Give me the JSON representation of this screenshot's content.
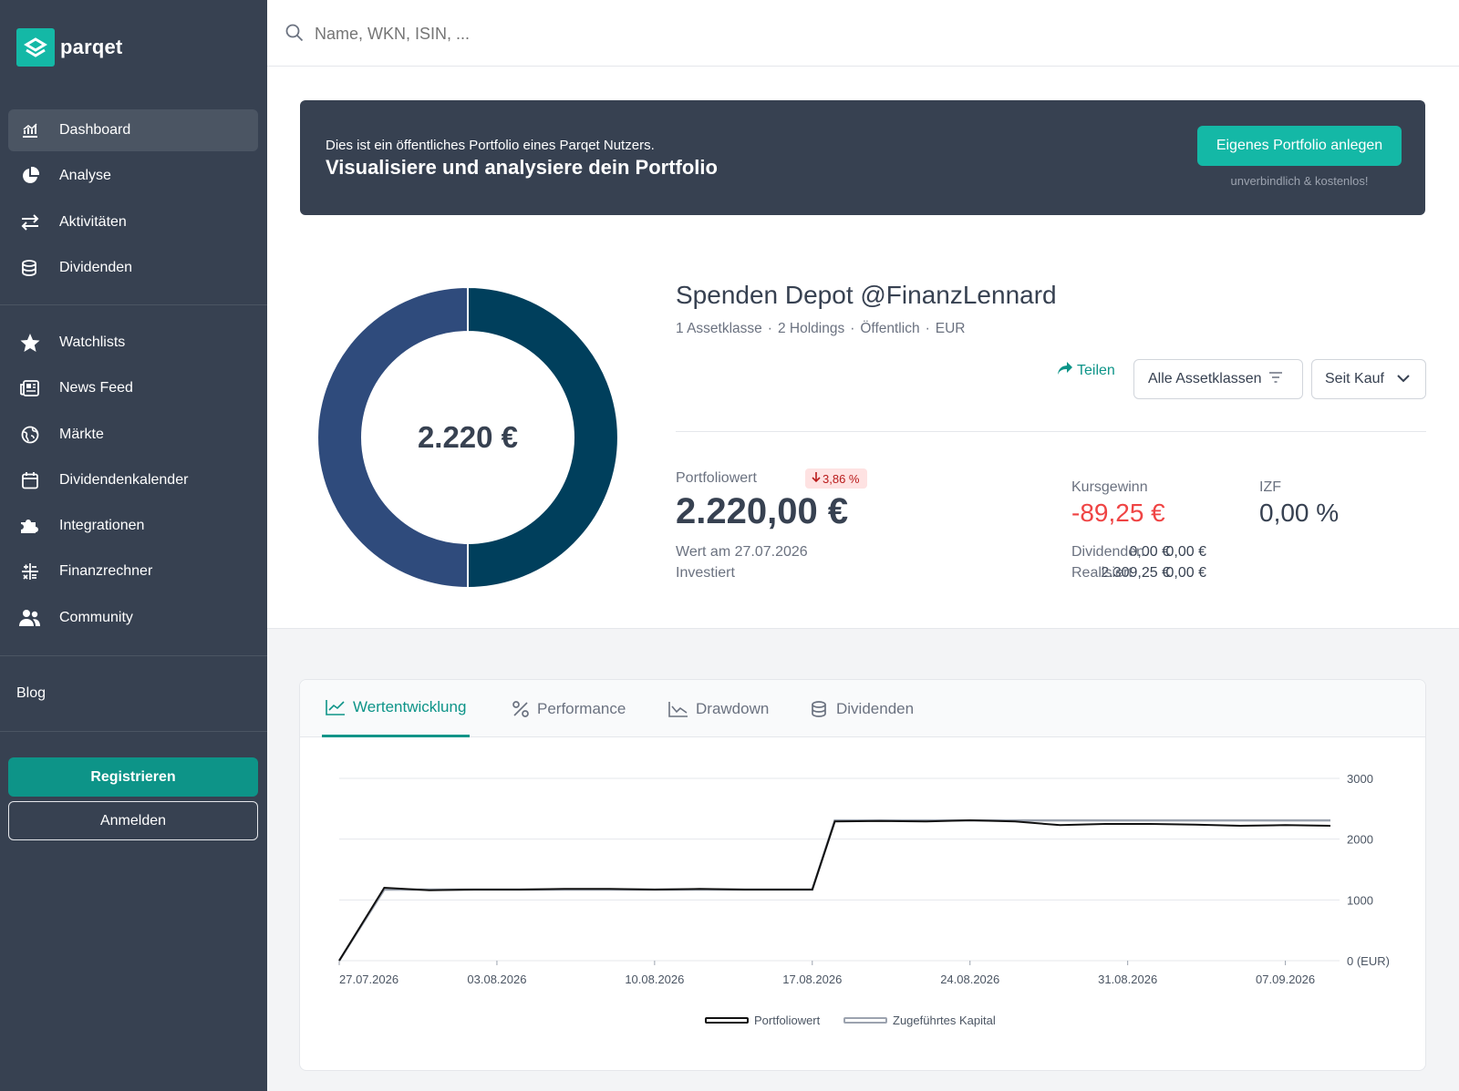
{
  "brand": {
    "name": "parqet",
    "color": "#14b8a6"
  },
  "sidebar": {
    "items_main": [
      {
        "label": "Dashboard",
        "icon": "chart-bars-icon",
        "active": true
      },
      {
        "label": "Analyse",
        "icon": "pie-chart-icon"
      },
      {
        "label": "Aktivitäten",
        "icon": "arrows-exchange-icon"
      },
      {
        "label": "Dividenden",
        "icon": "coins-icon"
      }
    ],
    "items_secondary": [
      {
        "label": "Watchlists",
        "icon": "star-icon"
      },
      {
        "label": "News Feed",
        "icon": "newspaper-icon"
      },
      {
        "label": "Märkte",
        "icon": "globe-icon"
      },
      {
        "label": "Dividendenkalender",
        "icon": "calendar-icon"
      },
      {
        "label": "Integrationen",
        "icon": "puzzle-icon"
      },
      {
        "label": "Finanzrechner",
        "icon": "calculator-icon"
      },
      {
        "label": "Community",
        "icon": "users-icon"
      }
    ],
    "blog": "Blog",
    "register": "Registrieren",
    "login": "Anmelden"
  },
  "search": {
    "placeholder": "Name, WKN, ISIN, ..."
  },
  "banner": {
    "subtitle": "Dies ist ein öffentliches Portfolio eines Parqet Nutzers.",
    "title": "Visualisiere und analysiere dein Portfolio",
    "button": "Eigenes Portfolio anlegen",
    "note": "unverbindlich & kostenlos!"
  },
  "donut": {
    "center_label": "2.220 €",
    "slices": [
      {
        "value": 50,
        "color": "#003f5c"
      },
      {
        "value": 50,
        "color": "#2f4b7c"
      }
    ]
  },
  "portfolio": {
    "title": "Spenden Depot @FinanzLennard",
    "meta": [
      "1 Assetklasse",
      "2 Holdings",
      "Öffentlich",
      "EUR"
    ],
    "share": "Teilen",
    "filter": "Alle Assetklassen",
    "period": "Seit Kauf",
    "value_label": "Portfoliowert",
    "change_badge": "3,86 %",
    "value": "2.220,00 €",
    "rows_left": [
      {
        "label": "Wert am 27.07.2026",
        "value": "0,00 €"
      },
      {
        "label": "Investiert",
        "value": "2.309,25 €"
      }
    ],
    "gain_label": "Kursgewinn",
    "gain_value": "-89,25 €",
    "izf_label": "IZF",
    "izf_value": "0,00 %",
    "rows_right": [
      {
        "label": "Dividenden",
        "value": "0,00 €"
      },
      {
        "label": "Realisiert",
        "value": "0,00 €"
      }
    ]
  },
  "tabs": [
    {
      "label": "Wertentwicklung",
      "icon": "line-chart-icon",
      "active": true
    },
    {
      "label": "Performance",
      "icon": "percent-icon"
    },
    {
      "label": "Drawdown",
      "icon": "drawdown-chart-icon"
    },
    {
      "label": "Dividenden",
      "icon": "coins-icon"
    }
  ],
  "chart_data": {
    "type": "line",
    "x": [
      "2026-07-27",
      "2026-07-29",
      "2026-07-31",
      "2026-08-02",
      "2026-08-04",
      "2026-08-06",
      "2026-08-08",
      "2026-08-10",
      "2026-08-12",
      "2026-08-14",
      "2026-08-16",
      "2026-08-17",
      "2026-08-18",
      "2026-08-20",
      "2026-08-22",
      "2026-08-24",
      "2026-08-26",
      "2026-08-28",
      "2026-08-30",
      "2026-09-01",
      "2026-09-03",
      "2026-09-05",
      "2026-09-07",
      "2026-09-09"
    ],
    "xticks": [
      "27.07.2026",
      "03.08.2026",
      "10.08.2026",
      "17.08.2026",
      "24.08.2026",
      "31.08.2026",
      "07.09.2026"
    ],
    "yticks": [
      "0 (EUR)",
      "1000",
      "2000",
      "3000"
    ],
    "ylim": [
      0,
      3000
    ],
    "series": [
      {
        "name": "Portfoliowert",
        "color": "#111111",
        "values": [
          0,
          1200,
          1160,
          1170,
          1170,
          1180,
          1180,
          1170,
          1180,
          1170,
          1170,
          1170,
          2290,
          2300,
          2290,
          2310,
          2290,
          2230,
          2250,
          2250,
          2240,
          2220,
          2230,
          2220
        ]
      },
      {
        "name": "Zugeführtes Kapital",
        "color": "#9ca3af",
        "values": [
          0,
          1170,
          1170,
          1170,
          1170,
          1170,
          1170,
          1170,
          1170,
          1170,
          1170,
          1170,
          2309,
          2309,
          2309,
          2309,
          2309,
          2309,
          2309,
          2309,
          2309,
          2309,
          2309,
          2309
        ]
      }
    ]
  }
}
